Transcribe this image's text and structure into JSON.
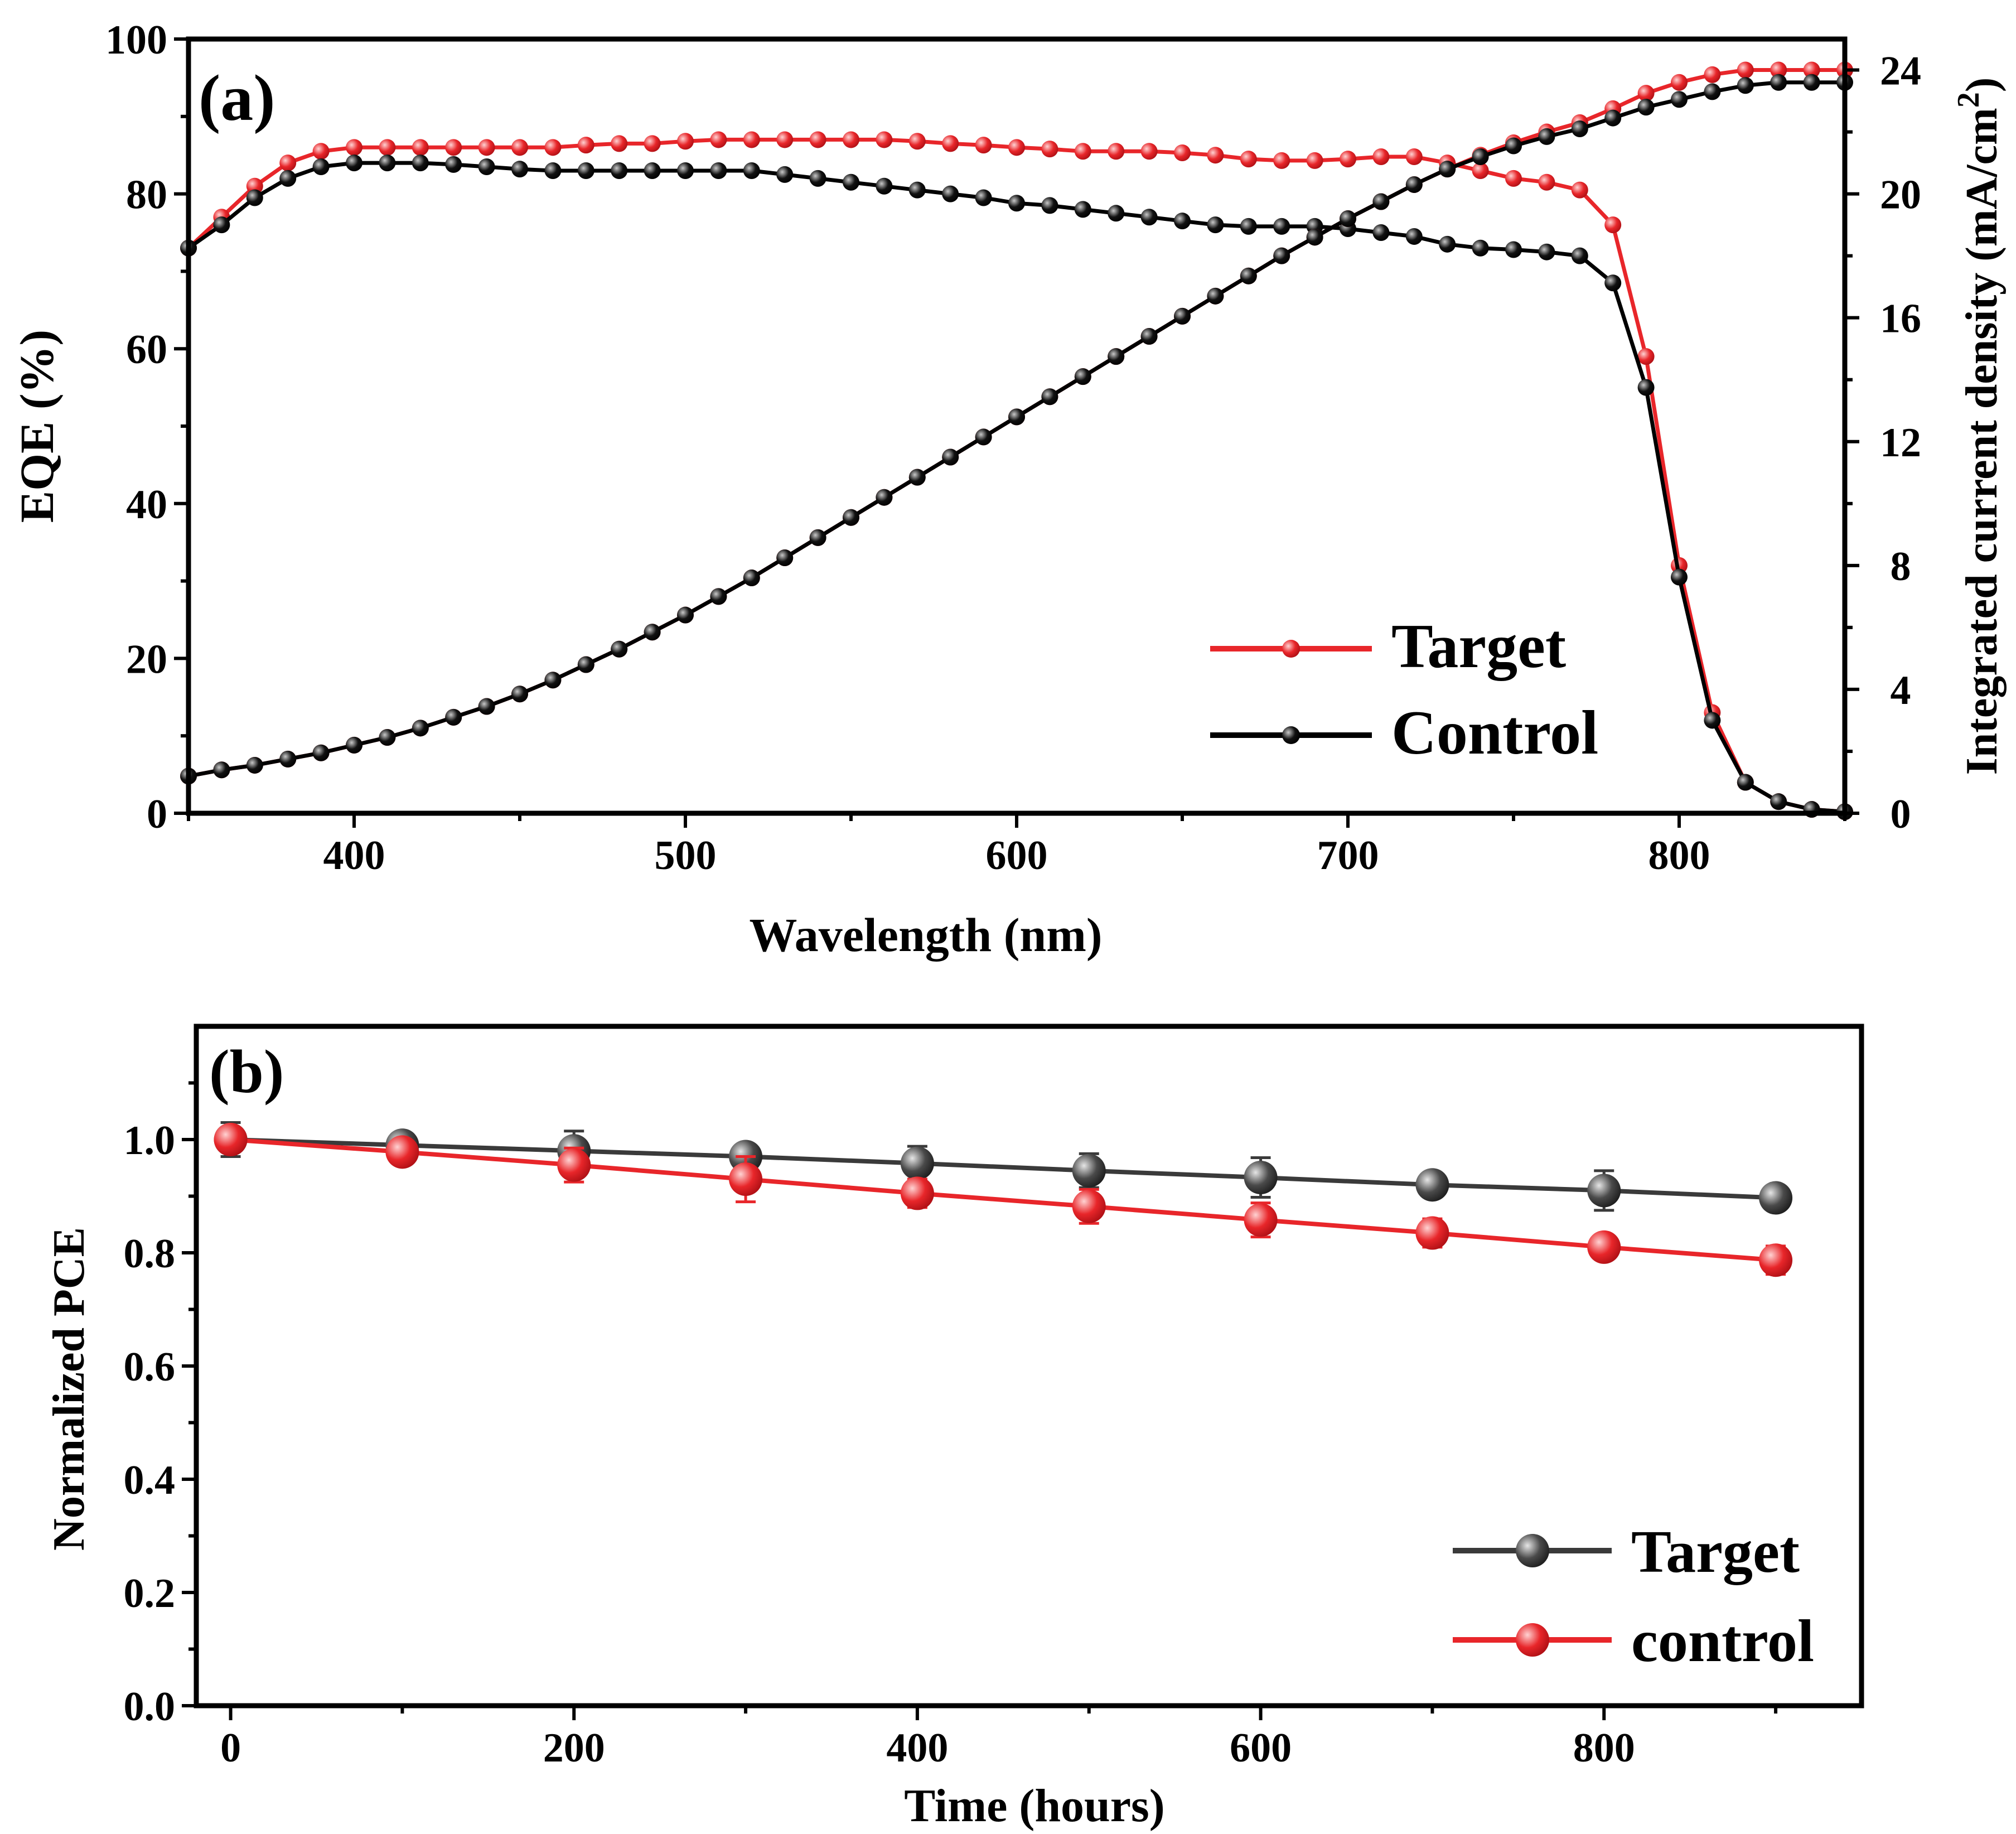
{
  "chart_data": [
    {
      "panel_label": "(a)",
      "type": "line",
      "xlabel": "Wavelength (nm)",
      "ylabel": "EQE (%)",
      "y2label_main": "Integrated current density (mA/cm",
      "y2label_sup": "2",
      "y2label_close": ")",
      "xlim": [
        350,
        850
      ],
      "ylim": [
        0,
        100
      ],
      "y2lim": [
        0,
        25
      ],
      "xticks": [
        "400",
        "500",
        "600",
        "700",
        "800"
      ],
      "yticks": [
        "0",
        "20",
        "40",
        "60",
        "80",
        "100"
      ],
      "y2ticks": [
        "0",
        "4",
        "8",
        "12",
        "16",
        "20",
        "24"
      ],
      "legend_position": "bottom-right",
      "legend": [
        "Target",
        "Control"
      ],
      "colors": {
        "Target": "#e8262a",
        "Control": "#000000"
      },
      "series": [
        {
          "name": "Target",
          "axis": "left",
          "kind": "EQE",
          "x": [
            350,
            360,
            370,
            380,
            390,
            400,
            410,
            420,
            430,
            440,
            450,
            460,
            470,
            480,
            490,
            500,
            510,
            520,
            530,
            540,
            550,
            560,
            570,
            580,
            590,
            600,
            610,
            620,
            630,
            640,
            650,
            660,
            670,
            680,
            690,
            700,
            710,
            720,
            730,
            740,
            750,
            760,
            770,
            780,
            790,
            800,
            810,
            820,
            830,
            840,
            850
          ],
          "values": [
            73,
            77,
            81,
            84,
            85.5,
            86,
            86,
            86,
            86,
            86,
            86,
            86,
            86.3,
            86.5,
            86.5,
            86.8,
            87,
            87,
            87,
            87,
            87,
            87,
            86.8,
            86.5,
            86.3,
            86,
            85.8,
            85.5,
            85.5,
            85.5,
            85.3,
            85,
            84.5,
            84.3,
            84.3,
            84.5,
            84.8,
            84.8,
            84,
            83,
            82,
            81.5,
            80.5,
            76,
            59,
            32,
            13,
            4,
            1.5,
            0.5,
            0.2
          ]
        },
        {
          "name": "Control",
          "axis": "left",
          "kind": "EQE",
          "x": [
            350,
            360,
            370,
            380,
            390,
            400,
            410,
            420,
            430,
            440,
            450,
            460,
            470,
            480,
            490,
            500,
            510,
            520,
            530,
            540,
            550,
            560,
            570,
            580,
            590,
            600,
            610,
            620,
            630,
            640,
            650,
            660,
            670,
            680,
            690,
            700,
            710,
            720,
            730,
            740,
            750,
            760,
            770,
            780,
            790,
            800,
            810,
            820,
            830,
            840,
            850
          ],
          "values": [
            73,
            76,
            79.5,
            82,
            83.5,
            84,
            84,
            84,
            83.8,
            83.5,
            83.2,
            83,
            83,
            83,
            83,
            83,
            83,
            83,
            82.5,
            82,
            81.5,
            81,
            80.5,
            80,
            79.5,
            78.8,
            78.5,
            78,
            77.5,
            77,
            76.5,
            76,
            75.8,
            75.8,
            75.8,
            75.5,
            75,
            74.5,
            73.5,
            73,
            72.8,
            72.5,
            72,
            68.5,
            55,
            30.5,
            12,
            4,
            1.5,
            0.5,
            0.2
          ]
        },
        {
          "name": "Target",
          "axis": "right",
          "kind": "Jsc",
          "x": [
            350,
            360,
            370,
            380,
            390,
            400,
            410,
            420,
            430,
            440,
            450,
            460,
            470,
            480,
            490,
            500,
            510,
            520,
            530,
            540,
            550,
            560,
            570,
            580,
            590,
            600,
            610,
            620,
            630,
            640,
            650,
            660,
            670,
            680,
            690,
            700,
            710,
            720,
            730,
            740,
            750,
            760,
            770,
            780,
            790,
            800,
            810,
            820,
            830,
            840,
            850
          ],
          "values": [
            1.2,
            1.4,
            1.55,
            1.75,
            1.95,
            2.2,
            2.45,
            2.75,
            3.1,
            3.45,
            3.85,
            4.3,
            4.8,
            5.3,
            5.85,
            6.4,
            7,
            7.6,
            8.25,
            8.9,
            9.55,
            10.2,
            10.85,
            11.5,
            12.15,
            12.8,
            13.45,
            14.1,
            14.75,
            15.4,
            16.05,
            16.7,
            17.35,
            18,
            18.6,
            19.2,
            19.75,
            20.3,
            20.8,
            21.25,
            21.65,
            22,
            22.3,
            22.75,
            23.25,
            23.6,
            23.85,
            24,
            24,
            24,
            24
          ]
        },
        {
          "name": "Control",
          "axis": "right",
          "kind": "Jsc",
          "x": [
            350,
            360,
            370,
            380,
            390,
            400,
            410,
            420,
            430,
            440,
            450,
            460,
            470,
            480,
            490,
            500,
            510,
            520,
            530,
            540,
            550,
            560,
            570,
            580,
            590,
            600,
            610,
            620,
            630,
            640,
            650,
            660,
            670,
            680,
            690,
            700,
            710,
            720,
            730,
            740,
            750,
            760,
            770,
            780,
            790,
            800,
            810,
            820,
            830,
            840,
            850
          ],
          "values": [
            1.2,
            1.4,
            1.55,
            1.75,
            1.95,
            2.2,
            2.45,
            2.75,
            3.1,
            3.45,
            3.85,
            4.3,
            4.8,
            5.3,
            5.85,
            6.4,
            7,
            7.6,
            8.25,
            8.9,
            9.55,
            10.2,
            10.85,
            11.5,
            12.15,
            12.8,
            13.45,
            14.1,
            14.75,
            15.4,
            16.05,
            16.7,
            17.35,
            18,
            18.6,
            19.2,
            19.75,
            20.3,
            20.8,
            21.2,
            21.55,
            21.85,
            22.1,
            22.45,
            22.8,
            23.05,
            23.3,
            23.5,
            23.6,
            23.6,
            23.6
          ]
        }
      ]
    },
    {
      "panel_label": "(b)",
      "type": "line",
      "xlabel": "Time (hours)",
      "ylabel": "Normalized PCE",
      "xlim": [
        -20,
        950
      ],
      "ylim": [
        0,
        1.2
      ],
      "xticks": [
        "0",
        "200",
        "400",
        "600",
        "800"
      ],
      "yticks": [
        "0.0",
        "0.2",
        "0.4",
        "0.6",
        "0.8",
        "1.0"
      ],
      "legend_position": "bottom-right",
      "legend": [
        "Target",
        "control"
      ],
      "colors": {
        "Target": "#3a3a3a",
        "control": "#e8262a"
      },
      "series": [
        {
          "name": "Target",
          "x": [
            0,
            100,
            200,
            300,
            400,
            500,
            600,
            700,
            800,
            900
          ],
          "values": [
            1.0,
            0.99,
            0.98,
            0.97,
            0.958,
            0.945,
            0.933,
            0.92,
            0.91,
            0.897
          ],
          "errors": [
            0.03,
            0.01,
            0.035,
            0.015,
            0.03,
            0.03,
            0.035,
            0.02,
            0.035,
            0.02
          ]
        },
        {
          "name": "control",
          "x": [
            0,
            100,
            200,
            300,
            400,
            500,
            600,
            700,
            800,
            900
          ],
          "values": [
            1.0,
            0.978,
            0.955,
            0.93,
            0.905,
            0.882,
            0.858,
            0.835,
            0.81,
            0.787
          ],
          "errors": [
            0.02,
            0.02,
            0.03,
            0.04,
            0.025,
            0.03,
            0.03,
            0.025,
            0.02,
            0.025
          ]
        }
      ]
    }
  ]
}
